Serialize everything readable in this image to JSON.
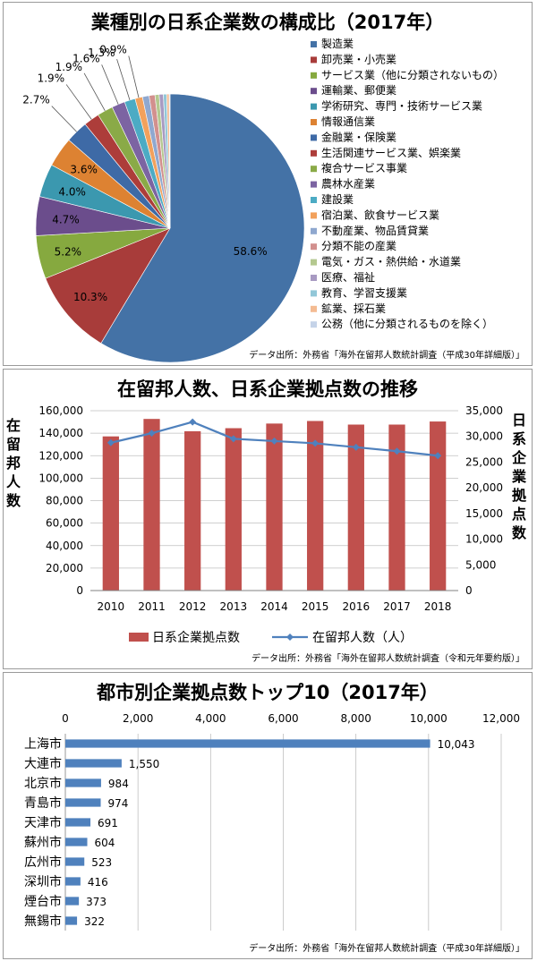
{
  "chart_data": [
    {
      "type": "pie",
      "title": "業種別の日系企業数の構成比（2017年）",
      "labels": [
        "製造業",
        "卸売業・小売業",
        "サービス業（他に分類されないもの）",
        "運輸業、郵便業",
        "学術研究、専門・技術サービス業",
        "情報通信業",
        "金融業・保険業",
        "生活関連サービス業、娯楽業",
        "複合サービス事業",
        "農林水産業",
        "建設業",
        "宿泊業、飲食サービス業",
        "不動産業、物品賃貸業",
        "分類不能の産業",
        "電気・ガス・熱供給・水道業",
        "医療、福祉",
        "教育、学習支援業",
        "鉱業、採石業",
        "公務（他に分類されるものを除く）"
      ],
      "values": [
        58.6,
        10.3,
        5.2,
        4.7,
        4.0,
        3.6,
        2.7,
        1.9,
        1.9,
        1.6,
        1.3,
        0.9,
        0.8,
        0.7,
        0.5,
        0.5,
        0.4,
        0.3,
        0.1
      ],
      "value_labels": [
        "58.6%",
        "10.3%",
        "5.2%",
        "4.7%",
        "4.0%",
        "3.6%",
        "2.7%",
        "1.9%",
        "1.9%",
        "1.6%",
        "1.3%",
        "0.9%",
        "",
        "",
        "",
        "",
        "",
        "",
        ""
      ],
      "colors": [
        "#4472a6",
        "#a83c3a",
        "#86a93f",
        "#6b4d8c",
        "#3b98af",
        "#dd8232",
        "#3e6aa6",
        "#ad3d3a",
        "#8aaa47",
        "#7c64a2",
        "#4cabc4",
        "#f2a15c",
        "#8fa8cf",
        "#d2908e",
        "#b4c88f",
        "#a89ac2",
        "#92c7d8",
        "#f4bb92",
        "#c5d3e8"
      ],
      "legend_position": "right",
      "source": "データ出所：外務省「海外在留邦人数統計調査（平成30年詳細版）」"
    },
    {
      "type": "bar",
      "title": "在留邦人数、日系企業拠点数の推移",
      "categories": [
        "2010",
        "2011",
        "2012",
        "2013",
        "2014",
        "2015",
        "2016",
        "2017",
        "2018"
      ],
      "series": [
        {
          "name": "日系企業拠点数",
          "type": "bar",
          "axis": "right",
          "values": [
            30000,
            33400,
            31000,
            31600,
            32500,
            33000,
            32300,
            32300,
            32900
          ]
        },
        {
          "name": "在留邦人数（人）",
          "type": "line",
          "axis": "left",
          "values": [
            131500,
            140000,
            150000,
            135000,
            133000,
            131000,
            127500,
            124000,
            120000
          ]
        }
      ],
      "ylabel_left": "在留邦人数",
      "ylabel_right": "日系企業拠点数",
      "ylim_left": [
        0,
        160000
      ],
      "ylim_right": [
        0,
        35000
      ],
      "yticks_left": [
        "0",
        "20,000",
        "40,000",
        "60,000",
        "80,000",
        "100,000",
        "120,000",
        "140,000",
        "160,000"
      ],
      "yticks_right": [
        "0",
        "5,000",
        "10,000",
        "15,000",
        "20,000",
        "25,000",
        "30,000",
        "35,000"
      ],
      "grid": true,
      "legend_position": "bottom",
      "colors": {
        "bar": "#c0504d",
        "line": "#4f81bd"
      },
      "source": "データ出所：外務省「海外在留邦人数統計調査（令和元年要約版）」"
    },
    {
      "type": "bar",
      "orientation": "horizontal",
      "title": "都市別企業拠点数トップ10（2017年）",
      "categories": [
        "上海市",
        "大連市",
        "北京市",
        "青島市",
        "天津市",
        "蘇州市",
        "広州市",
        "深圳市",
        "煙台市",
        "無錫市"
      ],
      "values": [
        10043,
        1550,
        984,
        974,
        691,
        604,
        523,
        416,
        373,
        322
      ],
      "value_labels": [
        "10,043",
        "1,550",
        "984",
        "974",
        "691",
        "604",
        "523",
        "416",
        "373",
        "322"
      ],
      "xlim": [
        0,
        12000
      ],
      "xticks": [
        "0",
        "2,000",
        "4,000",
        "6,000",
        "8,000",
        "10,000",
        "12,000"
      ],
      "grid": true,
      "color": "#4f81bd",
      "source": "データ出所：外務省「海外在留邦人数統計調査（平成30年詳細版）」"
    }
  ]
}
